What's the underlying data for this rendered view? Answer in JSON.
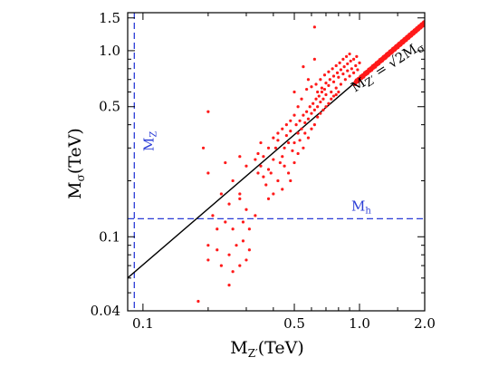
{
  "chart_data": {
    "type": "scatter",
    "title": "",
    "xlabel": {
      "main": "M",
      "sub": "Z′",
      "unit": "(TeV)"
    },
    "ylabel": {
      "main": "M",
      "sub": "σ",
      "unit": "(TeV)"
    },
    "x_scale": "log",
    "y_scale": "log",
    "xlim": [
      0.085,
      2.0
    ],
    "ylim": [
      0.04,
      1.6
    ],
    "x_ticks": [
      {
        "value": 0.1,
        "label": "0.1"
      },
      {
        "value": 0.5,
        "label": "0.5"
      },
      {
        "value": 1.0,
        "label": "1.0"
      },
      {
        "value": 2.0,
        "label": "2.0"
      }
    ],
    "y_ticks": [
      {
        "value": 0.04,
        "label": "0.04"
      },
      {
        "value": 0.1,
        "label": "0.1"
      },
      {
        "value": 0.5,
        "label": "0.5"
      },
      {
        "value": 1.0,
        "label": "1.0"
      },
      {
        "value": 1.5,
        "label": "1.5"
      }
    ],
    "reference_lines": [
      {
        "orientation": "vertical",
        "value": 0.0912,
        "label": "M",
        "label_sub": "Z",
        "color": "#2a3cd6",
        "style": "dashed"
      },
      {
        "orientation": "horizontal",
        "value": 0.125,
        "label": "M",
        "label_sub": "h",
        "color": "#2a3cd6",
        "style": "dashed"
      }
    ],
    "diagonal": {
      "relation": "y = x / √2",
      "label_left": "M",
      "label_left_sub": "Z′",
      "label_right": " = √2M",
      "label_right_sub": "σ",
      "color": "#000000"
    },
    "series": [
      {
        "color": "#ff1a1a",
        "points": [
          [
            0.62,
            1.34
          ],
          [
            0.2,
            0.47
          ],
          [
            0.5,
            0.6
          ],
          [
            0.55,
            0.82
          ],
          [
            0.62,
            0.9
          ],
          [
            0.58,
            0.7
          ],
          [
            0.19,
            0.3
          ],
          [
            0.2,
            0.22
          ],
          [
            0.24,
            0.25
          ],
          [
            0.28,
            0.27
          ],
          [
            0.3,
            0.24
          ],
          [
            0.26,
            0.2
          ],
          [
            0.23,
            0.17
          ],
          [
            0.25,
            0.15
          ],
          [
            0.28,
            0.16
          ],
          [
            0.3,
            0.14
          ],
          [
            0.33,
            0.13
          ],
          [
            0.21,
            0.13
          ],
          [
            0.22,
            0.11
          ],
          [
            0.24,
            0.12
          ],
          [
            0.26,
            0.11
          ],
          [
            0.29,
            0.12
          ],
          [
            0.31,
            0.11
          ],
          [
            0.2,
            0.09
          ],
          [
            0.22,
            0.085
          ],
          [
            0.25,
            0.08
          ],
          [
            0.27,
            0.09
          ],
          [
            0.29,
            0.095
          ],
          [
            0.31,
            0.085
          ],
          [
            0.2,
            0.075
          ],
          [
            0.23,
            0.07
          ],
          [
            0.26,
            0.065
          ],
          [
            0.28,
            0.07
          ],
          [
            0.3,
            0.075
          ],
          [
            0.25,
            0.055
          ],
          [
            0.18,
            0.045
          ],
          [
            0.28,
            0.17
          ],
          [
            0.33,
            0.26
          ],
          [
            0.34,
            0.28
          ],
          [
            0.35,
            0.32
          ],
          [
            0.36,
            0.21
          ],
          [
            0.37,
            0.19
          ],
          [
            0.38,
            0.23
          ],
          [
            0.39,
            0.22
          ],
          [
            0.4,
            0.26
          ],
          [
            0.41,
            0.3
          ],
          [
            0.42,
            0.33
          ],
          [
            0.43,
            0.25
          ],
          [
            0.44,
            0.27
          ],
          [
            0.45,
            0.3
          ],
          [
            0.46,
            0.35
          ],
          [
            0.47,
            0.32
          ],
          [
            0.48,
            0.37
          ],
          [
            0.49,
            0.29
          ],
          [
            0.5,
            0.32
          ],
          [
            0.51,
            0.4
          ],
          [
            0.52,
            0.36
          ],
          [
            0.53,
            0.42
          ],
          [
            0.54,
            0.38
          ],
          [
            0.55,
            0.45
          ],
          [
            0.56,
            0.41
          ],
          [
            0.57,
            0.47
          ],
          [
            0.58,
            0.43
          ],
          [
            0.59,
            0.5
          ],
          [
            0.6,
            0.46
          ],
          [
            0.61,
            0.52
          ],
          [
            0.62,
            0.48
          ],
          [
            0.63,
            0.55
          ],
          [
            0.64,
            0.5
          ],
          [
            0.65,
            0.57
          ],
          [
            0.66,
            0.53
          ],
          [
            0.67,
            0.6
          ],
          [
            0.68,
            0.55
          ],
          [
            0.69,
            0.62
          ],
          [
            0.7,
            0.58
          ],
          [
            0.72,
            0.65
          ],
          [
            0.74,
            0.6
          ],
          [
            0.76,
            0.68
          ],
          [
            0.78,
            0.63
          ],
          [
            0.8,
            0.72
          ],
          [
            0.82,
            0.66
          ],
          [
            0.84,
            0.75
          ],
          [
            0.86,
            0.7
          ],
          [
            0.88,
            0.78
          ],
          [
            0.9,
            0.73
          ],
          [
            0.92,
            0.8
          ],
          [
            0.94,
            0.76
          ],
          [
            0.96,
            0.83
          ],
          [
            0.98,
            0.79
          ],
          [
            1.0,
            0.86
          ],
          [
            0.5,
            0.25
          ],
          [
            0.52,
            0.28
          ],
          [
            0.45,
            0.24
          ],
          [
            0.47,
            0.22
          ],
          [
            0.42,
            0.2
          ],
          [
            0.44,
            0.18
          ],
          [
            0.4,
            0.17
          ],
          [
            0.38,
            0.16
          ],
          [
            0.48,
            0.2
          ],
          [
            0.55,
            0.3
          ],
          [
            0.58,
            0.34
          ],
          [
            0.6,
            0.38
          ],
          [
            0.53,
            0.33
          ],
          [
            0.56,
            0.36
          ],
          [
            0.62,
            0.4
          ],
          [
            0.64,
            0.44
          ],
          [
            0.66,
            0.46
          ],
          [
            0.68,
            0.48
          ],
          [
            0.7,
            0.5
          ],
          [
            0.72,
            0.52
          ],
          [
            0.74,
            0.55
          ],
          [
            0.76,
            0.57
          ],
          [
            0.78,
            0.58
          ],
          [
            0.8,
            0.6
          ],
          [
            0.5,
            0.45
          ],
          [
            0.52,
            0.5
          ],
          [
            0.54,
            0.55
          ],
          [
            0.48,
            0.42
          ],
          [
            0.46,
            0.4
          ],
          [
            0.44,
            0.38
          ],
          [
            0.42,
            0.36
          ],
          [
            0.4,
            0.34
          ],
          [
            0.38,
            0.3
          ],
          [
            0.36,
            0.27
          ],
          [
            0.35,
            0.24
          ],
          [
            0.34,
            0.22
          ],
          [
            0.57,
            0.62
          ],
          [
            0.6,
            0.64
          ],
          [
            0.63,
            0.66
          ],
          [
            0.66,
            0.7
          ],
          [
            0.69,
            0.74
          ],
          [
            0.72,
            0.77
          ],
          [
            0.75,
            0.8
          ],
          [
            0.78,
            0.83
          ],
          [
            0.81,
            0.86
          ],
          [
            0.84,
            0.9
          ],
          [
            0.87,
            0.93
          ],
          [
            0.9,
            0.96
          ],
          [
            0.64,
            0.6
          ],
          [
            0.67,
            0.63
          ],
          [
            0.7,
            0.67
          ],
          [
            0.73,
            0.7
          ],
          [
            0.76,
            0.73
          ],
          [
            0.79,
            0.76
          ],
          [
            0.82,
            0.79
          ],
          [
            0.85,
            0.82
          ],
          [
            0.88,
            0.85
          ],
          [
            0.91,
            0.88
          ],
          [
            0.94,
            0.9
          ],
          [
            0.97,
            0.93
          ]
        ]
      }
    ]
  }
}
